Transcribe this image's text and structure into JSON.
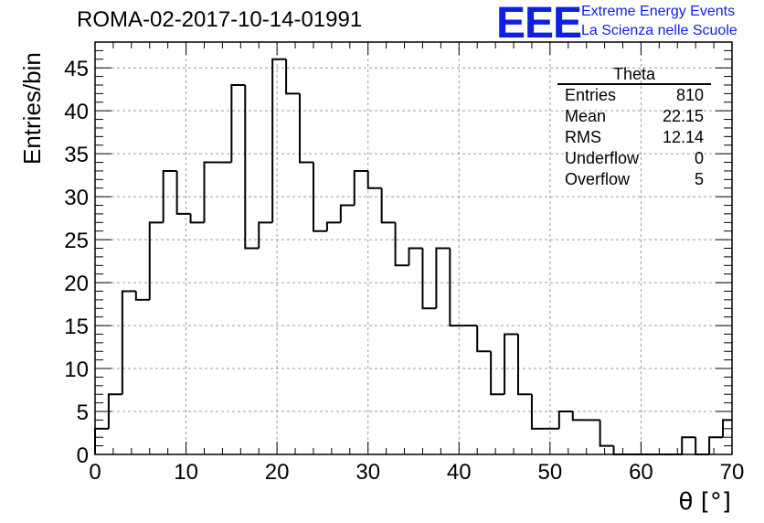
{
  "title": "ROMA-02-2017-10-14-01991",
  "logo": {
    "mark": "EEE",
    "line1": "Extreme Energy Events",
    "line2": "La Scienza nelle Scuole",
    "color": "#0f1ee8"
  },
  "stats": {
    "title": "Theta",
    "rows": [
      {
        "label": "Entries",
        "value": "810"
      },
      {
        "label": "Mean",
        "value": "22.15"
      },
      {
        "label": "RMS",
        "value": "12.14"
      },
      {
        "label": "Underflow",
        "value": "0"
      },
      {
        "label": "Overflow",
        "value": "5"
      }
    ]
  },
  "chart_data": {
    "type": "bar",
    "style": "step-histogram",
    "title": "ROMA-02-2017-10-14-01991",
    "xlabel": "θ [°]",
    "ylabel": "Entries/bin",
    "xlim": [
      0,
      70
    ],
    "ylim": [
      0,
      48
    ],
    "bin_width": 1.5,
    "bin_edges_start": 0,
    "values": [
      3,
      7,
      19,
      18,
      27,
      33,
      28,
      27,
      34,
      34,
      43,
      24,
      27,
      46,
      42,
      34,
      26,
      27,
      29,
      33,
      31,
      27,
      22,
      24,
      17,
      24,
      15,
      15,
      12,
      7,
      14,
      7,
      3,
      3,
      5,
      4,
      4,
      1,
      0,
      0,
      0,
      0,
      0,
      2,
      0,
      2,
      4
    ],
    "x_ticks": [
      0,
      10,
      20,
      30,
      40,
      50,
      60,
      70
    ],
    "y_ticks": [
      0,
      5,
      10,
      15,
      20,
      25,
      30,
      35,
      40,
      45
    ],
    "grid": true,
    "line_color": "#000000",
    "grid_color": "#9a9a9a"
  }
}
